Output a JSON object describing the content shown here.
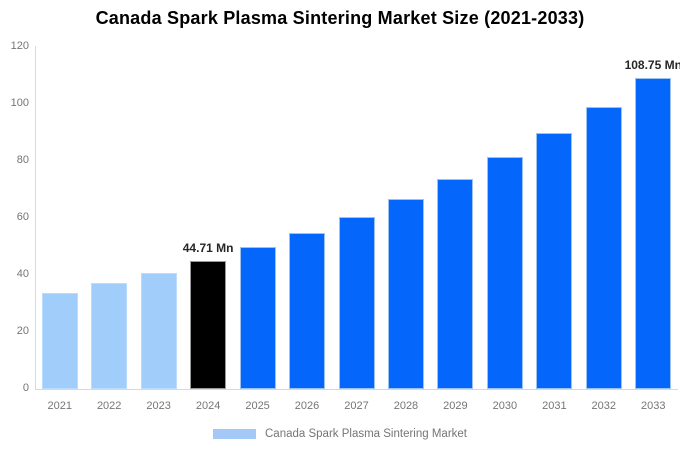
{
  "title": "Canada Spark Plasma Sintering Market Size (2021-2033)",
  "legend": {
    "label": "Canada Spark Plasma Sintering Market",
    "swatch_color": "#A4C9F7"
  },
  "colors": {
    "axis_line": "#D9D9D9",
    "tick_text": "#757575",
    "title_text": "#000000",
    "data_label_text": "#262626"
  },
  "chart_data": {
    "type": "bar",
    "title": "Canada Spark Plasma Sintering Market Size (2021-2033)",
    "xlabel": "",
    "ylabel": "",
    "categories": [
      "2021",
      "2022",
      "2023",
      "2024",
      "2025",
      "2026",
      "2027",
      "2028",
      "2029",
      "2030",
      "2031",
      "2032",
      "2033"
    ],
    "values": [
      33.23,
      36.68,
      40.5,
      44.71,
      49.36,
      54.49,
      60.15,
      66.4,
      73.3,
      80.92,
      89.33,
      98.61,
      108.75
    ],
    "roles": [
      "past",
      "past",
      "past",
      "current",
      "forecast",
      "forecast",
      "forecast",
      "forecast",
      "forecast",
      "forecast",
      "forecast",
      "forecast",
      "forecast"
    ],
    "bar_styles": {
      "past": {
        "fill": "#A1CDFB",
        "border": "#BCDCFD"
      },
      "current": {
        "fill": "#000000",
        "border": "#9B9B9B"
      },
      "forecast": {
        "fill": "#0566FB",
        "border": "#9CC2F0"
      }
    },
    "data_labels": [
      {
        "year": "2024",
        "text": "44.71 Mn"
      },
      {
        "year": "2033",
        "text": "108.75 Mn"
      }
    ],
    "ylim": [
      0,
      120
    ],
    "yticks": [
      0,
      20,
      40,
      60,
      80,
      100,
      120
    ],
    "grid": false,
    "legend_position": "bottom",
    "series_name": "Canada Spark Plasma Sintering Market"
  }
}
